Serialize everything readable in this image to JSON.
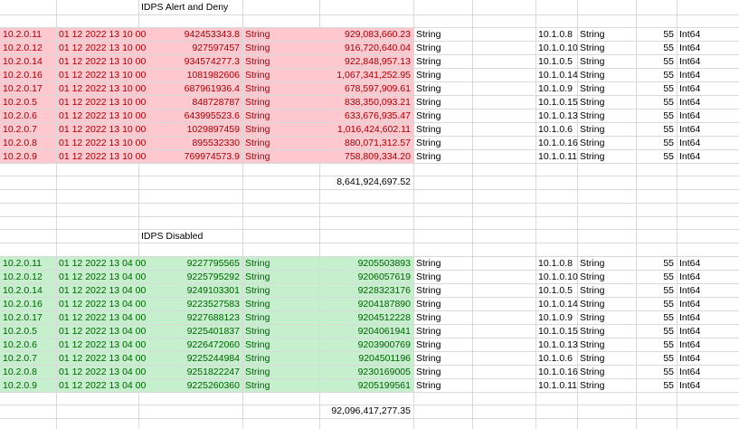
{
  "sections": [
    {
      "title": "IDPS Alert and Deny",
      "style": "red",
      "rows": [
        {
          "src_ip": "10.2.0.11",
          "timestamp": "01 12 2022 13 10 00",
          "value1": "942453343.8",
          "type1": "String",
          "value2": "929,083,660.23",
          "type2": "String",
          "dst_ip": "10.1.0.8",
          "type3": "String",
          "num": "55",
          "type4": "Int64"
        },
        {
          "src_ip": "10.2.0.12",
          "timestamp": "01 12 2022 13 10 00",
          "value1": "927597457",
          "type1": "String",
          "value2": "916,720,640.04",
          "type2": "String",
          "dst_ip": "10.1.0.10",
          "type3": "String",
          "num": "55",
          "type4": "Int64"
        },
        {
          "src_ip": "10.2.0.14",
          "timestamp": "01 12 2022 13 10 00",
          "value1": "934574277.3",
          "type1": "String",
          "value2": "922,848,957.13",
          "type2": "String",
          "dst_ip": "10.1.0.5",
          "type3": "String",
          "num": "55",
          "type4": "Int64"
        },
        {
          "src_ip": "10.2.0.16",
          "timestamp": "01 12 2022 13 10 00",
          "value1": "1081982606",
          "type1": "String",
          "value2": "1,067,341,252.95",
          "type2": "String",
          "dst_ip": "10.1.0.14",
          "type3": "String",
          "num": "55",
          "type4": "Int64"
        },
        {
          "src_ip": "10.2.0.17",
          "timestamp": "01 12 2022 13 10 00",
          "value1": "687961936.4",
          "type1": "String",
          "value2": "678,597,909.61",
          "type2": "String",
          "dst_ip": "10.1.0.9",
          "type3": "String",
          "num": "55",
          "type4": "Int64"
        },
        {
          "src_ip": "10.2.0.5",
          "timestamp": "01 12 2022 13 10 00",
          "value1": "848728787",
          "type1": "String",
          "value2": "838,350,093.21",
          "type2": "String",
          "dst_ip": "10.1.0.15",
          "type3": "String",
          "num": "55",
          "type4": "Int64"
        },
        {
          "src_ip": "10.2.0.6",
          "timestamp": "01 12 2022 13 10 00",
          "value1": "643995523.6",
          "type1": "String",
          "value2": "633,676,935.47",
          "type2": "String",
          "dst_ip": "10.1.0.13",
          "type3": "String",
          "num": "55",
          "type4": "Int64"
        },
        {
          "src_ip": "10.2.0.7",
          "timestamp": "01 12 2022 13 10 00",
          "value1": "1029897459",
          "type1": "String",
          "value2": "1,016,424,602.11",
          "type2": "String",
          "dst_ip": "10.1.0.6",
          "type3": "String",
          "num": "55",
          "type4": "Int64"
        },
        {
          "src_ip": "10.2.0.8",
          "timestamp": "01 12 2022 13 10 00",
          "value1": "895532330",
          "type1": "String",
          "value2": "880,071,312.57",
          "type2": "String",
          "dst_ip": "10.1.0.16",
          "type3": "String",
          "num": "55",
          "type4": "Int64"
        },
        {
          "src_ip": "10.2.0.9",
          "timestamp": "01 12 2022 13 10 00",
          "value1": "769974573.9",
          "type1": "String",
          "value2": "758,809,334.20",
          "type2": "String",
          "dst_ip": "10.1.0.11",
          "type3": "String",
          "num": "55",
          "type4": "Int64"
        }
      ],
      "total": "8,641,924,697.52"
    },
    {
      "title": "IDPS Disabled",
      "style": "green",
      "rows": [
        {
          "src_ip": "10.2.0.11",
          "timestamp": "01 12 2022 13 04 00",
          "value1": "9227795565",
          "type1": "String",
          "value2": "9205503893",
          "type2": "String",
          "dst_ip": "10.1.0.8",
          "type3": "String",
          "num": "55",
          "type4": "Int64"
        },
        {
          "src_ip": "10.2.0.12",
          "timestamp": "01 12 2022 13 04 00",
          "value1": "9225795292",
          "type1": "String",
          "value2": "9206057619",
          "type2": "String",
          "dst_ip": "10.1.0.10",
          "type3": "String",
          "num": "55",
          "type4": "Int64"
        },
        {
          "src_ip": "10.2.0.14",
          "timestamp": "01 12 2022 13 04 00",
          "value1": "9249103301",
          "type1": "String",
          "value2": "9228323176",
          "type2": "String",
          "dst_ip": "10.1.0.5",
          "type3": "String",
          "num": "55",
          "type4": "Int64"
        },
        {
          "src_ip": "10.2.0.16",
          "timestamp": "01 12 2022 13 04 00",
          "value1": "9223527583",
          "type1": "String",
          "value2": "9204187890",
          "type2": "String",
          "dst_ip": "10.1.0.14",
          "type3": "String",
          "num": "55",
          "type4": "Int64"
        },
        {
          "src_ip": "10.2.0.17",
          "timestamp": "01 12 2022 13 04 00",
          "value1": "9227688123",
          "type1": "String",
          "value2": "9204512228",
          "type2": "String",
          "dst_ip": "10.1.0.9",
          "type3": "String",
          "num": "55",
          "type4": "Int64"
        },
        {
          "src_ip": "10.2.0.5",
          "timestamp": "01 12 2022 13 04 00",
          "value1": "9225401837",
          "type1": "String",
          "value2": "9204061941",
          "type2": "String",
          "dst_ip": "10.1.0.15",
          "type3": "String",
          "num": "55",
          "type4": "Int64"
        },
        {
          "src_ip": "10.2.0.6",
          "timestamp": "01 12 2022 13 04 00",
          "value1": "9226472060",
          "type1": "String",
          "value2": "9203900769",
          "type2": "String",
          "dst_ip": "10.1.0.13",
          "type3": "String",
          "num": "55",
          "type4": "Int64"
        },
        {
          "src_ip": "10.2.0.7",
          "timestamp": "01 12 2022 13 04 00",
          "value1": "9225244984",
          "type1": "String",
          "value2": "9204501196",
          "type2": "String",
          "dst_ip": "10.1.0.6",
          "type3": "String",
          "num": "55",
          "type4": "Int64"
        },
        {
          "src_ip": "10.2.0.8",
          "timestamp": "01 12 2022 13 04 00",
          "value1": "9251822247",
          "type1": "String",
          "value2": "9230169005",
          "type2": "String",
          "dst_ip": "10.1.0.16",
          "type3": "String",
          "num": "55",
          "type4": "Int64"
        },
        {
          "src_ip": "10.2.0.9",
          "timestamp": "01 12 2022 13 04 00",
          "value1": "9225260360",
          "type1": "String",
          "value2": "9205199561",
          "type2": "String",
          "dst_ip": "10.1.0.11",
          "type3": "String",
          "num": "55",
          "type4": "Int64"
        }
      ],
      "total": "92,096,417,277.35"
    }
  ],
  "colors": {
    "red_fill": "#ffc7ce",
    "red_text": "#9c0006",
    "green_fill": "#c6efce",
    "green_text": "#006100",
    "gridline": "#d9d9d9"
  }
}
